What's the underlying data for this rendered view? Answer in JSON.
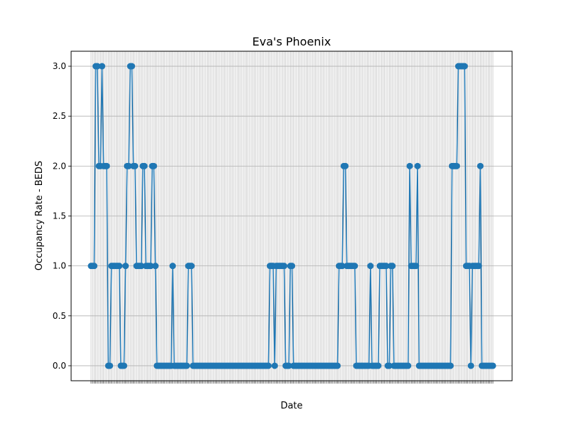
{
  "chart_data": {
    "type": "line",
    "title": "Eva's Phoenix",
    "xlabel": "Date",
    "ylabel": "Occupancy Rate - BEDS",
    "ylim": [
      -0.15,
      3.15
    ],
    "yticks": [
      "0.0",
      "0.5",
      "1.0",
      "1.5",
      "2.0",
      "2.5",
      "3.0"
    ],
    "grid": true,
    "marker": "circle",
    "color": "#1f77b4",
    "grid_color": "#b0b0b0",
    "values": [
      1,
      1,
      1,
      3,
      3,
      2,
      2,
      3,
      2,
      2,
      2,
      0,
      0,
      1,
      1,
      1,
      1,
      1,
      1,
      0,
      0,
      0,
      1,
      2,
      2,
      3,
      3,
      2,
      2,
      1,
      1,
      1,
      1,
      2,
      2,
      1,
      1,
      1,
      1,
      2,
      2,
      1,
      0,
      0,
      0,
      0,
      0,
      0,
      0,
      0,
      0,
      0,
      1,
      0,
      0,
      0,
      0,
      0,
      0,
      0,
      0,
      0,
      1,
      1,
      1,
      0,
      0,
      0,
      0,
      0,
      0,
      0,
      0,
      0,
      0,
      0,
      0,
      0,
      0,
      0,
      0,
      0,
      0,
      0,
      0,
      0,
      0,
      0,
      0,
      0,
      0,
      0,
      0,
      0,
      0,
      0,
      0,
      0,
      0,
      0,
      0,
      0,
      0,
      0,
      0,
      0,
      0,
      0,
      0,
      0,
      0,
      0,
      0,
      0,
      1,
      1,
      1,
      0,
      1,
      1,
      1,
      1,
      1,
      1,
      0,
      0,
      0,
      1,
      1,
      0,
      0,
      0,
      0,
      0,
      0,
      0,
      0,
      0,
      0,
      0,
      0,
      0,
      0,
      0,
      0,
      0,
      0,
      0,
      0,
      0,
      0,
      0,
      0,
      0,
      0,
      0,
      0,
      0,
      1,
      1,
      1,
      2,
      2,
      1,
      1,
      1,
      1,
      1,
      1,
      0,
      0,
      0,
      0,
      0,
      0,
      0,
      0,
      0,
      1,
      0,
      0,
      0,
      0,
      0,
      1,
      1,
      1,
      1,
      1,
      0,
      0,
      1,
      1,
      0,
      0,
      0,
      0,
      0,
      0,
      0,
      0,
      0,
      0,
      2,
      1,
      1,
      1,
      1,
      2,
      0,
      0,
      0,
      0,
      0,
      0,
      0,
      0,
      0,
      0,
      0,
      0,
      0,
      0,
      0,
      0,
      0,
      0,
      0,
      0,
      0,
      2,
      2,
      2,
      2,
      3,
      3,
      3,
      3,
      3,
      1,
      1,
      1,
      0,
      1,
      1,
      1,
      1,
      1,
      2,
      0,
      0,
      0,
      0,
      0,
      0,
      0,
      0
    ]
  }
}
